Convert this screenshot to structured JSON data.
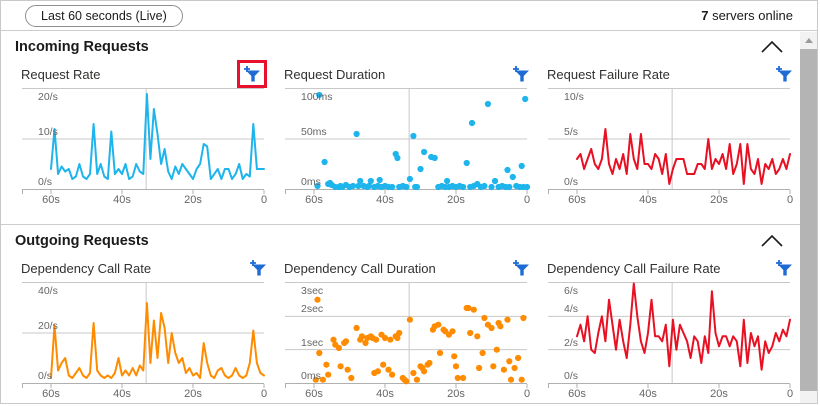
{
  "toolbar": {
    "time_range_label": "Last 60 seconds (Live)",
    "servers_count": "7",
    "servers_label": " servers online"
  },
  "sections": [
    {
      "title": "Incoming Requests"
    },
    {
      "title": "Outgoing Requests"
    }
  ],
  "annotations": {
    "highlighted_filter_chart": "Request Rate",
    "highlight_color": "#e8112d"
  },
  "colors": {
    "blue": "#1eb4ec",
    "orange": "#ff8c00",
    "red": "#e81123",
    "funnel_blue": "#1e6bd6",
    "grid": "#c8c8c8",
    "axis_text": "#666666"
  },
  "chart_data": [
    {
      "type": "line",
      "title": "Request Rate",
      "color": "#1eb4ec",
      "ylabel": "requests/sec",
      "xlabel": "seconds ago",
      "ylim": [
        0,
        20
      ],
      "gridlines": [
        10
      ],
      "vline_t": 33.2,
      "ylabels": [
        {
          "text": "20/s",
          "v": 20
        },
        {
          "text": "10/s",
          "v": 10
        },
        {
          "text": "0/s",
          "v": 0
        }
      ],
      "xticks": [
        {
          "text": "60s",
          "t": 60
        },
        {
          "text": "40s",
          "t": 40
        },
        {
          "text": "20s",
          "t": 20
        },
        {
          "text": "0",
          "t": 0
        }
      ],
      "x_start_seconds_ago": 60,
      "x_step_seconds": -1,
      "values": [
        4,
        12,
        3,
        4.5,
        3.5,
        4,
        2,
        2.5,
        5,
        2.5,
        2,
        3,
        13,
        3,
        5,
        2.5,
        2,
        11.5,
        3,
        4,
        3,
        5,
        2,
        2.5,
        5,
        3.5,
        3,
        19,
        6,
        16,
        11,
        5,
        8,
        3.5,
        2,
        4.5,
        3,
        5,
        4,
        3,
        2,
        4,
        5,
        9,
        8.5,
        2,
        3,
        4,
        2,
        4,
        4,
        2,
        3,
        5,
        2,
        3,
        2.5,
        13,
        4,
        4,
        4
      ]
    },
    {
      "type": "scatter",
      "title": "Request Duration",
      "color": "#1eb4ec",
      "ylabel": "milliseconds",
      "xlabel": "seconds ago",
      "ylim": [
        0,
        100
      ],
      "gridlines": [
        50
      ],
      "vline_t": 33.2,
      "ylabels": [
        {
          "text": "100ms",
          "v": 100
        },
        {
          "text": "50ms",
          "v": 50
        },
        {
          "text": "0ms",
          "v": 0
        }
      ],
      "xticks": [
        {
          "text": "60s",
          "t": 60
        },
        {
          "text": "40s",
          "t": 40
        },
        {
          "text": "20s",
          "t": 20
        },
        {
          "text": "0",
          "t": 0
        }
      ],
      "points": [
        [
          59,
          3
        ],
        [
          58.5,
          94
        ],
        [
          57,
          27
        ],
        [
          56,
          5
        ],
        [
          55.5,
          6
        ],
        [
          55,
          4
        ],
        [
          54,
          2
        ],
        [
          53,
          2
        ],
        [
          52.5,
          3
        ],
        [
          52,
          2
        ],
        [
          51,
          4
        ],
        [
          50,
          2
        ],
        [
          49,
          3
        ],
        [
          48,
          55
        ],
        [
          47.5,
          3
        ],
        [
          47,
          8
        ],
        [
          46,
          3
        ],
        [
          45,
          2
        ],
        [
          44.5,
          3
        ],
        [
          44,
          8
        ],
        [
          43,
          2
        ],
        [
          42,
          3
        ],
        [
          41.5,
          9
        ],
        [
          41,
          2
        ],
        [
          40,
          3
        ],
        [
          39,
          2
        ],
        [
          38,
          2
        ],
        [
          37,
          35
        ],
        [
          36.5,
          31
        ],
        [
          36,
          2
        ],
        [
          35,
          3
        ],
        [
          34,
          2
        ],
        [
          33,
          10
        ],
        [
          32,
          53
        ],
        [
          31.5,
          2
        ],
        [
          31,
          2
        ],
        [
          30,
          20
        ],
        [
          29,
          37
        ],
        [
          27,
          32
        ],
        [
          26,
          31
        ],
        [
          25,
          2
        ],
        [
          24,
          3
        ],
        [
          23,
          2
        ],
        [
          22.5,
          8
        ],
        [
          22,
          2
        ],
        [
          21,
          3
        ],
        [
          20,
          2
        ],
        [
          19,
          3
        ],
        [
          18,
          2
        ],
        [
          17,
          26
        ],
        [
          16,
          2
        ],
        [
          15.5,
          66
        ],
        [
          15,
          3
        ],
        [
          14,
          5
        ],
        [
          13,
          2
        ],
        [
          12,
          3
        ],
        [
          11,
          85
        ],
        [
          10,
          2
        ],
        [
          9,
          8
        ],
        [
          8,
          2
        ],
        [
          7,
          3
        ],
        [
          6,
          2
        ],
        [
          5.5,
          19
        ],
        [
          5,
          2
        ],
        [
          4,
          12
        ],
        [
          3,
          3
        ],
        [
          2,
          2
        ],
        [
          1.5,
          23
        ],
        [
          1,
          2
        ],
        [
          0.5,
          90
        ],
        [
          0,
          2
        ]
      ]
    },
    {
      "type": "line",
      "title": "Request Failure Rate",
      "color": "#e81123",
      "ylabel": "failures/sec",
      "xlabel": "seconds ago",
      "ylim": [
        0,
        10
      ],
      "gridlines": [
        5
      ],
      "vline_t": 33.2,
      "ylabels": [
        {
          "text": "10/s",
          "v": 10
        },
        {
          "text": "5/s",
          "v": 5
        },
        {
          "text": "0/s",
          "v": 0
        }
      ],
      "xticks": [
        {
          "text": "60s",
          "t": 60
        },
        {
          "text": "40s",
          "t": 40
        },
        {
          "text": "20s",
          "t": 20
        },
        {
          "text": "0",
          "t": 0
        }
      ],
      "x_start_seconds_ago": 60,
      "x_step_seconds": -1,
      "values": [
        3,
        3.5,
        2,
        3,
        4,
        2.5,
        2,
        3,
        6,
        2.5,
        1.5,
        3,
        2,
        3.5,
        1.5,
        5.5,
        3,
        2,
        5.5,
        2.5,
        2.5,
        2,
        3.5,
        3,
        1.5,
        3.5,
        0.5,
        2,
        3,
        3,
        3,
        1.5,
        1.5,
        1.5,
        2.5,
        2.5,
        2,
        5,
        2,
        3,
        2.5,
        3.5,
        2,
        4.5,
        1.5,
        2.5,
        4.5,
        0.5,
        4.5,
        2,
        1.5,
        3,
        0.5,
        2.5,
        2,
        3,
        1.5,
        2,
        3,
        2,
        3.5
      ]
    },
    {
      "type": "line",
      "title": "Dependency Call Rate",
      "color": "#ff8c00",
      "ylabel": "calls/sec",
      "xlabel": "seconds ago",
      "ylim": [
        0,
        40
      ],
      "gridlines": [
        20
      ],
      "vline_t": 33.2,
      "ylabels": [
        {
          "text": "40/s",
          "v": 40
        },
        {
          "text": "20/s",
          "v": 20
        },
        {
          "text": "0/s",
          "v": 0
        }
      ],
      "xticks": [
        {
          "text": "60s",
          "t": 60
        },
        {
          "text": "40s",
          "t": 40
        },
        {
          "text": "20s",
          "t": 20
        },
        {
          "text": "0",
          "t": 0
        }
      ],
      "x_start_seconds_ago": 60,
      "x_step_seconds": -1,
      "values": [
        2,
        23,
        5,
        8,
        10,
        3,
        2,
        4,
        6,
        3,
        2,
        4,
        24,
        5,
        3,
        2,
        3,
        2,
        4,
        10,
        3,
        5,
        3,
        6,
        3,
        7,
        5,
        32,
        8,
        25,
        10,
        28,
        22,
        8,
        20,
        12,
        8,
        10,
        4,
        6,
        3,
        4,
        2,
        16,
        8,
        3,
        2,
        5,
        6,
        3,
        2,
        3,
        6,
        3,
        2,
        3,
        8,
        21,
        8,
        4,
        3
      ]
    },
    {
      "type": "scatter",
      "title": "Dependency Call Duration",
      "color": "#ff8c00",
      "ylabel": "seconds",
      "xlabel": "seconds ago",
      "ylim": [
        0,
        3
      ],
      "gridlines": [
        2,
        1
      ],
      "vline_t": 33.2,
      "ylabels": [
        {
          "text": "3sec",
          "v": 3
        },
        {
          "text": "2sec",
          "v": 2
        },
        {
          "text": "1sec",
          "v": 1
        },
        {
          "text": "0ms",
          "v": 0
        }
      ],
      "xticks": [
        {
          "text": "60s",
          "t": 60
        },
        {
          "text": "40s",
          "t": 40
        },
        {
          "text": "20s",
          "t": 20
        },
        {
          "text": "0",
          "t": 0
        }
      ],
      "points": [
        [
          59.5,
          0.1
        ],
        [
          59,
          2.5
        ],
        [
          58.5,
          0.9
        ],
        [
          57.5,
          0.1
        ],
        [
          56.5,
          0.55
        ],
        [
          56,
          0.25
        ],
        [
          54.5,
          1.3
        ],
        [
          54,
          1.15
        ],
        [
          53,
          1.05
        ],
        [
          52.5,
          0.5
        ],
        [
          51.5,
          1.2
        ],
        [
          51,
          1.25
        ],
        [
          50.5,
          0.4
        ],
        [
          49.5,
          0.15
        ],
        [
          48,
          1.65
        ],
        [
          47,
          1.3
        ],
        [
          46.5,
          1.4
        ],
        [
          45.5,
          1.2
        ],
        [
          45,
          1.35
        ],
        [
          44,
          1.4
        ],
        [
          43.5,
          1.35
        ],
        [
          43,
          0.3
        ],
        [
          42.5,
          1.3
        ],
        [
          42,
          0.35
        ],
        [
          41,
          1.45
        ],
        [
          40.5,
          0.55
        ],
        [
          40,
          1.35
        ],
        [
          39,
          0.4
        ],
        [
          38.5,
          1.3
        ],
        [
          38,
          0.25
        ],
        [
          37,
          1.4
        ],
        [
          36.5,
          1.35
        ],
        [
          36,
          1.5
        ],
        [
          35,
          0.15
        ],
        [
          34.5,
          0.1
        ],
        [
          34,
          0.05
        ],
        [
          33,
          1.9
        ],
        [
          32,
          0.3
        ],
        [
          31,
          0.1
        ],
        [
          30,
          0.5
        ],
        [
          29.5,
          0.45
        ],
        [
          29,
          0.35
        ],
        [
          28,
          0.55
        ],
        [
          27.5,
          0.6
        ],
        [
          26.5,
          1.6
        ],
        [
          26,
          1.7
        ],
        [
          25,
          1.75
        ],
        [
          24.5,
          0.9
        ],
        [
          23.5,
          1.6
        ],
        [
          23,
          1.55
        ],
        [
          22,
          1.45
        ],
        [
          21,
          1.55
        ],
        [
          20.5,
          0.8
        ],
        [
          20,
          0.5
        ],
        [
          19.5,
          0.15
        ],
        [
          18,
          0.15
        ],
        [
          17,
          2.25
        ],
        [
          16.5,
          2.25
        ],
        [
          16,
          1.5
        ],
        [
          15,
          2.2
        ],
        [
          14,
          1.4
        ],
        [
          13.5,
          0.45
        ],
        [
          12.5,
          0.9
        ],
        [
          12,
          1.95
        ],
        [
          11,
          1.75
        ],
        [
          10,
          1.65
        ],
        [
          9.5,
          0.5
        ],
        [
          8.5,
          1
        ],
        [
          8,
          1.8
        ],
        [
          7.5,
          1.7
        ],
        [
          6.5,
          0.4
        ],
        [
          5.5,
          1.9
        ],
        [
          5,
          0.65
        ],
        [
          4.5,
          0.1
        ],
        [
          3.5,
          0.45
        ],
        [
          2.5,
          0.75
        ],
        [
          1.5,
          0.1
        ],
        [
          1,
          1.95
        ]
      ]
    },
    {
      "type": "line",
      "title": "Dependency Call Failure Rate",
      "color": "#e81123",
      "ylabel": "failures/sec",
      "xlabel": "seconds ago",
      "ylim": [
        0,
        6
      ],
      "gridlines": [
        4,
        2
      ],
      "vline_t": 33.2,
      "ylabels": [
        {
          "text": "6/s",
          "v": 6
        },
        {
          "text": "4/s",
          "v": 4
        },
        {
          "text": "2/s",
          "v": 2
        },
        {
          "text": "0/s",
          "v": 0
        }
      ],
      "xticks": [
        {
          "text": "60s",
          "t": 60
        },
        {
          "text": "40s",
          "t": 40
        },
        {
          "text": "20s",
          "t": 20
        },
        {
          "text": "0",
          "t": 0
        }
      ],
      "x_start_seconds_ago": 60,
      "x_step_seconds": -1,
      "values": [
        2.8,
        3.5,
        2.5,
        4,
        2,
        1.8,
        3,
        4,
        2.5,
        5,
        3.5,
        2,
        3.8,
        2.5,
        1.5,
        3.5,
        6,
        4,
        2.5,
        1.8,
        3,
        5,
        2.8,
        2.8,
        2.5,
        3.5,
        1,
        3.8,
        2,
        3.5,
        3,
        2.5,
        1.5,
        2.8,
        2.5,
        1.2,
        2.8,
        1.8,
        5.5,
        3,
        2.2,
        2.8,
        2.8,
        2.2,
        2.8,
        2.5,
        1,
        3.8,
        1.2,
        3,
        2.2,
        2.8,
        0.8,
        2.5,
        1.8,
        2.2,
        3,
        2.5,
        3.2,
        2.8,
        3.8
      ]
    }
  ]
}
